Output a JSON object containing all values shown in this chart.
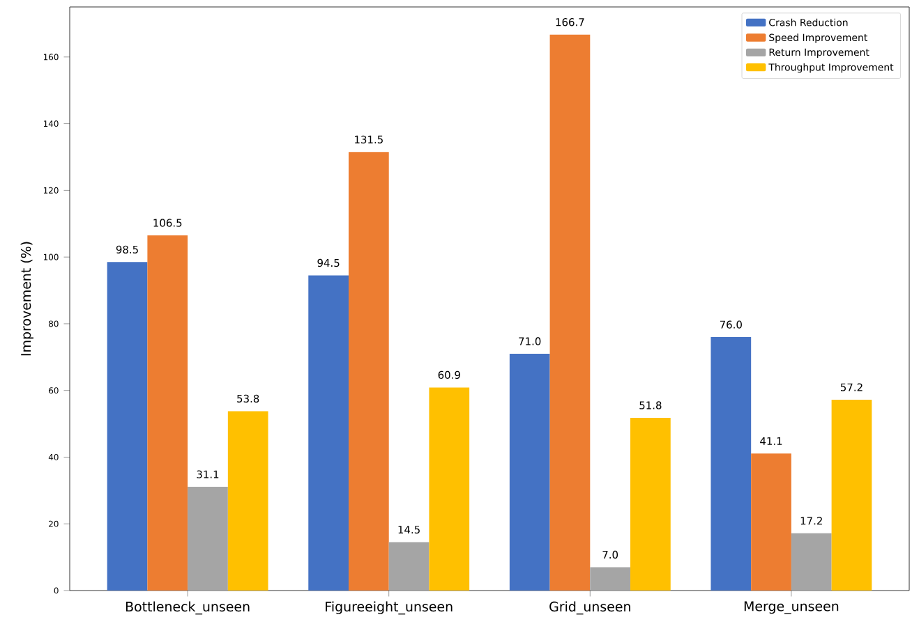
{
  "chart_data": {
    "type": "bar",
    "ylabel": "Improvement (%)",
    "categories": [
      "Bottleneck_unseen",
      "Figureeight_unseen",
      "Grid_unseen",
      "Merge_unseen"
    ],
    "series": [
      {
        "name": "Crash Reduction",
        "color": "#4472c4",
        "values": [
          98.5,
          94.5,
          71.0,
          76.0
        ],
        "value_labels": [
          "98.5",
          "94.5",
          "71.0",
          "76.0"
        ]
      },
      {
        "name": "Speed Improvement",
        "color": "#ed7d31",
        "values": [
          106.5,
          131.5,
          166.7,
          41.1
        ],
        "value_labels": [
          "106.5",
          "131.5",
          "166.7",
          "41.1"
        ]
      },
      {
        "name": "Return Improvement",
        "color": "#a5a5a5",
        "values": [
          31.1,
          14.5,
          7.0,
          17.2
        ],
        "value_labels": [
          "31.1",
          "14.5",
          "7.0",
          "17.2"
        ]
      },
      {
        "name": "Throughput Improvement",
        "color": "#ffc000",
        "values": [
          53.8,
          60.9,
          51.8,
          57.2
        ],
        "value_labels": [
          "53.8",
          "60.9",
          "51.8",
          "57.2"
        ]
      }
    ],
    "ylim": [
      0,
      175
    ],
    "yticks": [
      0,
      20,
      40,
      60,
      80,
      100,
      120,
      140,
      160
    ],
    "legend": "top right",
    "grid": false
  }
}
